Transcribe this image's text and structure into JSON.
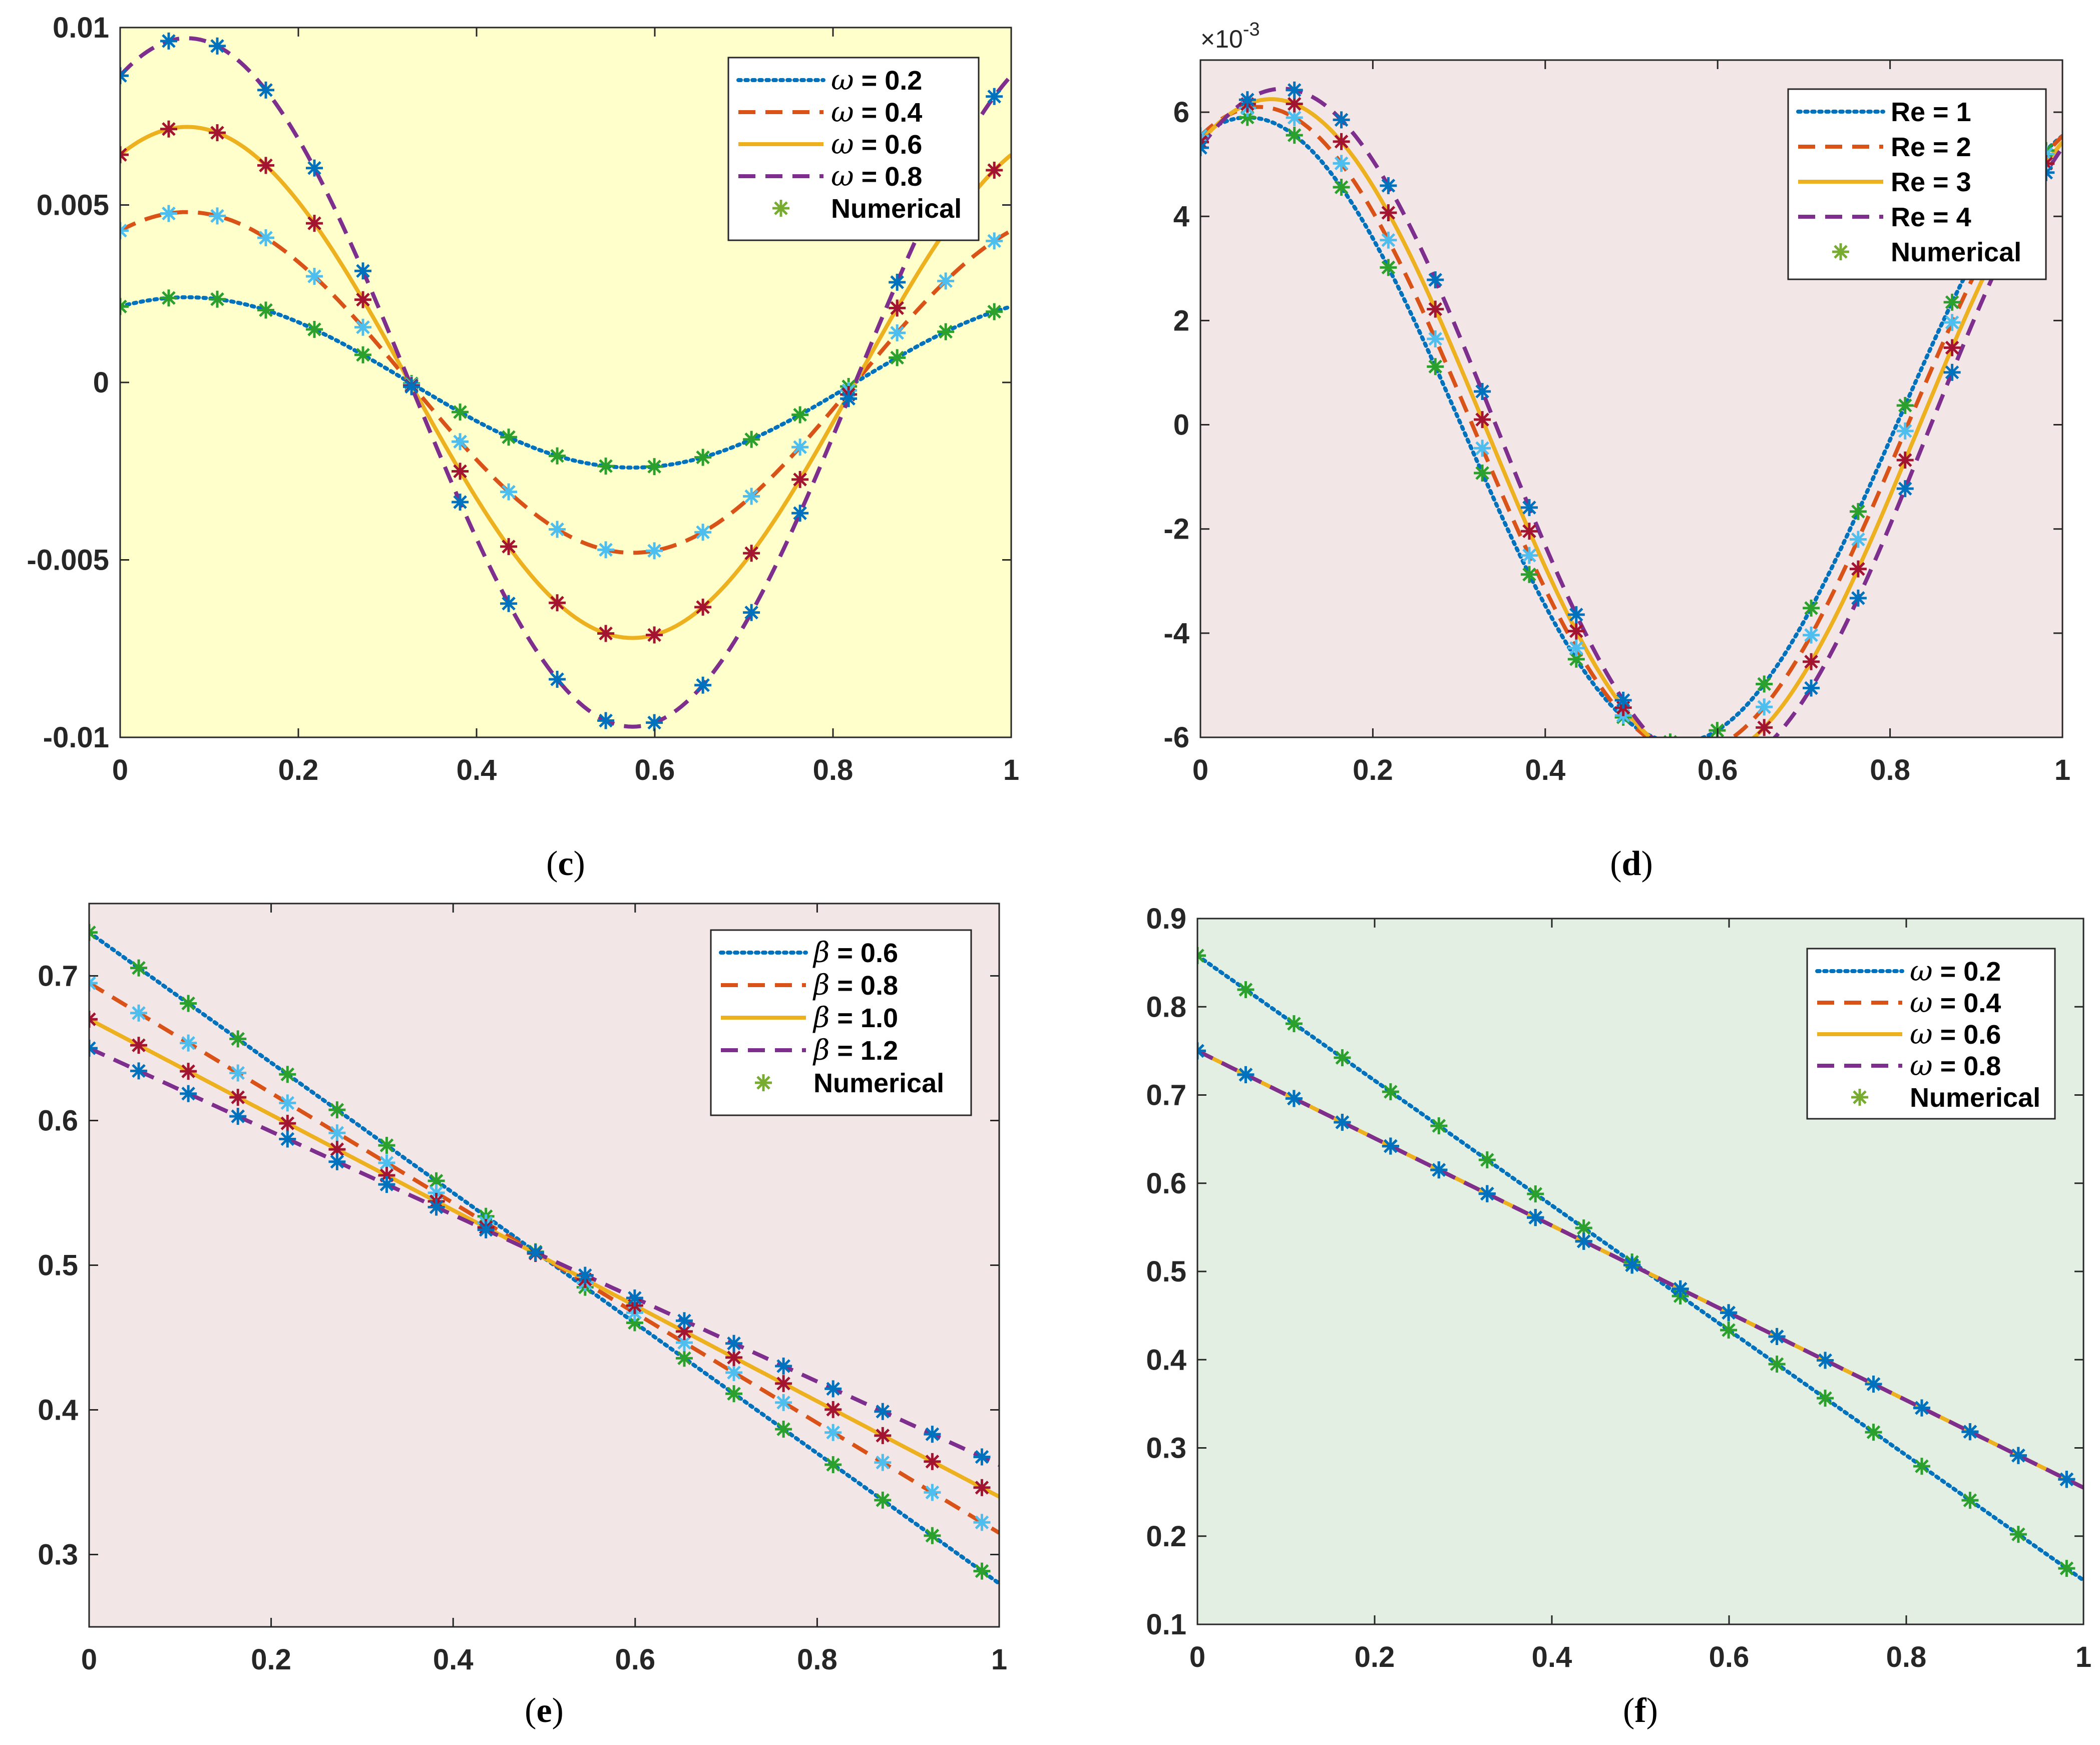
{
  "chart_data": [
    {
      "id": "c",
      "type": "line",
      "caption": "c",
      "background": "#ffffcc",
      "xlim": [
        0,
        1
      ],
      "ylim": [
        -0.01,
        0.01
      ],
      "xticks": [
        "0",
        "0.2",
        "0.4",
        "0.6",
        "0.8",
        "1"
      ],
      "yticks": [
        "-0.01",
        "-0.005",
        "0",
        "0.005",
        "0.01"
      ],
      "exponent_label": "",
      "legend": {
        "position": "top-right",
        "numerical_label": "Numerical"
      },
      "series": [
        {
          "symbol": "ω",
          "label": " = 0.2",
          "style": "dotted",
          "color": "#0072bd",
          "marker_color": "#2ca02c",
          "amplitude": 0.0024
        },
        {
          "symbol": "ω",
          "label": " = 0.4",
          "style": "dashed",
          "color": "#d95319",
          "marker_color": "#4dbeee",
          "amplitude": 0.0048
        },
        {
          "symbol": "ω",
          "label": " = 0.6",
          "style": "solid",
          "color": "#edb120",
          "marker_color": "#a2142f",
          "amplitude": 0.0072
        },
        {
          "symbol": "ω",
          "label": " = 0.8",
          "style": "dashed",
          "color": "#7e2f8e",
          "marker_color": "#0072bd",
          "amplitude": 0.0097
        }
      ],
      "numerical_marker_color": "#77ac30"
    },
    {
      "id": "d",
      "type": "line",
      "caption": "d",
      "background": "#f2e6e6",
      "xlim": [
        0,
        1
      ],
      "ylim": [
        -6,
        7
      ],
      "xticks": [
        "0",
        "0.2",
        "0.4",
        "0.6",
        "0.8",
        "1"
      ],
      "yticks": [
        "-6",
        "-4",
        "-2",
        "0",
        "2",
        "4",
        "6"
      ],
      "exponent_label": "×10-3",
      "legend": {
        "position": "top-right",
        "numerical_label": "Numerical"
      },
      "series": [
        {
          "symbol": "",
          "label": "Re = 1",
          "style": "dotted",
          "color": "#0072bd",
          "marker_color": "#2ca02c",
          "amplitude": 6.0,
          "shift": -0.02
        },
        {
          "symbol": "",
          "label": "Re = 2",
          "style": "dashed",
          "color": "#d95319",
          "marker_color": "#4dbeee",
          "amplitude": 6.2,
          "shift": -0.007
        },
        {
          "symbol": "",
          "label": "Re = 3",
          "style": "solid",
          "color": "#edb120",
          "marker_color": "#a2142f",
          "amplitude": 6.35,
          "shift": 0.007
        },
        {
          "symbol": "",
          "label": "Re = 4",
          "style": "dashed",
          "color": "#7e2f8e",
          "marker_color": "#0072bd",
          "amplitude": 6.55,
          "shift": 0.02
        }
      ],
      "numerical_marker_color": "#77ac30"
    },
    {
      "id": "e",
      "type": "line",
      "caption": "e",
      "background": "#f2e6e6",
      "xlim": [
        0,
        1
      ],
      "ylim": [
        0.25,
        0.75
      ],
      "xticks": [
        "0",
        "0.2",
        "0.4",
        "0.6",
        "0.8",
        "1"
      ],
      "yticks": [
        "0.3",
        "0.4",
        "0.5",
        "0.6",
        "0.7"
      ],
      "exponent_label": "",
      "legend": {
        "position": "top-right",
        "numerical_label": "Numerical"
      },
      "series": [
        {
          "symbol": "β",
          "label": " = 0.6",
          "style": "dotted",
          "color": "#0072bd",
          "marker_color": "#2ca02c",
          "y0": 0.73,
          "y1": 0.28
        },
        {
          "symbol": "β",
          "label": " = 0.8",
          "style": "dashed",
          "color": "#d95319",
          "marker_color": "#4dbeee",
          "y0": 0.695,
          "y1": 0.315
        },
        {
          "symbol": "β",
          "label": " = 1.0",
          "style": "solid",
          "color": "#edb120",
          "marker_color": "#a2142f",
          "y0": 0.67,
          "y1": 0.34
        },
        {
          "symbol": "β",
          "label": " = 1.2",
          "style": "dashed",
          "color": "#7e2f8e",
          "marker_color": "#0072bd",
          "y0": 0.65,
          "y1": 0.362
        }
      ],
      "numerical_marker_color": "#77ac30"
    },
    {
      "id": "f",
      "type": "line",
      "caption": "f",
      "background": "#e3efe3",
      "xlim": [
        0,
        1
      ],
      "ylim": [
        0.1,
        0.9
      ],
      "xticks": [
        "0",
        "0.2",
        "0.4",
        "0.6",
        "0.8",
        "1"
      ],
      "yticks": [
        "0.1",
        "0.2",
        "0.3",
        "0.4",
        "0.5",
        "0.6",
        "0.7",
        "0.8",
        "0.9"
      ],
      "exponent_label": "",
      "legend": {
        "position": "top-right",
        "numerical_label": "Numerical"
      },
      "series": [
        {
          "symbol": "ω",
          "label": " = 0.2",
          "style": "dotted",
          "color": "#0072bd",
          "marker_color": "#2ca02c",
          "y0": 0.858,
          "y1": 0.15
        },
        {
          "symbol": "ω",
          "label": " = 0.4",
          "style": "dashed",
          "color": "#d95319",
          "marker_color": "#0072bd",
          "y0": 0.75,
          "y1": 0.255
        },
        {
          "symbol": "ω",
          "label": " = 0.6",
          "style": "solid",
          "color": "#edb120",
          "marker_color": "#0072bd",
          "y0": 0.75,
          "y1": 0.255
        },
        {
          "symbol": "ω",
          "label": " = 0.8",
          "style": "dashed",
          "color": "#7e2f8e",
          "marker_color": "#0072bd",
          "y0": 0.75,
          "y1": 0.255
        }
      ],
      "numerical_marker_color": "#77ac30"
    }
  ]
}
